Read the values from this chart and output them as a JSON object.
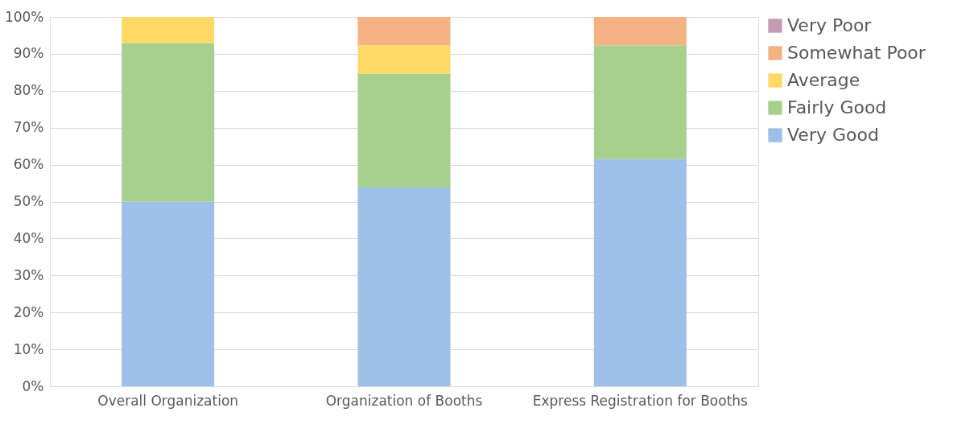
{
  "chart_data": {
    "type": "bar",
    "stacked": true,
    "categories": [
      "Overall Organization",
      "Organization of Booths",
      "Express Registration for Booths"
    ],
    "series": [
      {
        "name": "Very Good",
        "color": "#9dc0e8",
        "values": [
          50,
          53.8,
          61.5
        ]
      },
      {
        "name": "Fairly Good",
        "color": "#a8d08d",
        "values": [
          42.9,
          30.8,
          30.8
        ]
      },
      {
        "name": "Average",
        "color": "#ffd966",
        "values": [
          7.1,
          7.7,
          0
        ]
      },
      {
        "name": "Somewhat Poor",
        "color": "#f4b183",
        "values": [
          0,
          7.7,
          7.7
        ]
      },
      {
        "name": "Very Poor",
        "color": "#c49bb5",
        "values": [
          0,
          0,
          0
        ]
      }
    ],
    "ylim": [
      0,
      100
    ],
    "yticks": [
      {
        "value": 0,
        "label": "0%"
      },
      {
        "value": 10,
        "label": "10%"
      },
      {
        "value": 20,
        "label": "20%"
      },
      {
        "value": 30,
        "label": "30%"
      },
      {
        "value": 40,
        "label": "40%"
      },
      {
        "value": 50,
        "label": "50%"
      },
      {
        "value": 60,
        "label": "60%"
      },
      {
        "value": 70,
        "label": "70%"
      },
      {
        "value": 80,
        "label": "80%"
      },
      {
        "value": 90,
        "label": "90%"
      },
      {
        "value": 100,
        "label": "100%"
      }
    ],
    "grid": "y",
    "legend": "right"
  }
}
